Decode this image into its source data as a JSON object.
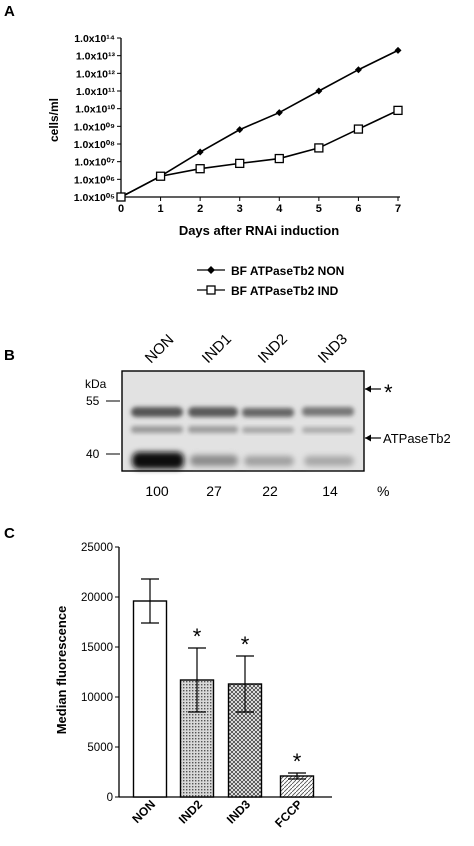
{
  "panels": {
    "a": {
      "label": "A"
    },
    "b": {
      "label": "B"
    },
    "c": {
      "label": "C"
    }
  },
  "chart_data": [
    {
      "panel": "A",
      "type": "line",
      "xlabel": "Days after RNAi induction",
      "ylabel": "cells/ml",
      "xlim": [
        0,
        7
      ],
      "ylim_log10": [
        5,
        14
      ],
      "yscale": "log",
      "x_ticks": [
        "0",
        "1",
        "2",
        "3",
        "4",
        "5",
        "6",
        "7"
      ],
      "y_ticks": [
        "1.0x10⁰⁵",
        "1.0x10⁰⁶",
        "1.0x10⁰⁷",
        "1.0x10⁰⁸",
        "1.0x10⁰⁹",
        "1.0x10¹⁰",
        "1.0x10¹¹",
        "1.0x10¹²",
        "1.0x10¹³",
        "1.0x10¹⁴"
      ],
      "x": [
        0,
        1,
        2,
        3,
        4,
        5,
        6,
        7
      ],
      "series": [
        {
          "name": "BF ATPaseTb2 NON",
          "marker": "filled-diamond",
          "values": [
            100000.0,
            1500000.0,
            35000000.0,
            650000000.0,
            6000000000.0,
            100000000000.0,
            1600000000000.0,
            20000000000000.0
          ]
        },
        {
          "name": "BF ATPaseTb2 IND",
          "marker": "open-square",
          "values": [
            100000.0,
            1500000.0,
            4000000.0,
            8000000.0,
            15000000.0,
            60000000.0,
            700000000.0,
            8000000000.0
          ]
        }
      ],
      "legend_position": "below-chart"
    },
    {
      "panel": "B",
      "type": "table",
      "title": "",
      "unit_label": "kDa",
      "lanes": [
        "NON",
        "IND1",
        "IND2",
        "IND3"
      ],
      "markers": [
        "55",
        "40"
      ],
      "band_labels": [
        "*",
        "ATPaseTb2"
      ],
      "percent_label": "%",
      "values": [
        100,
        27,
        22,
        14
      ]
    },
    {
      "panel": "C",
      "type": "bar",
      "ylabel": "Median fluorescence",
      "categories": [
        "NON",
        "IND2",
        "IND3",
        "FCCP"
      ],
      "values": [
        19600,
        11700,
        11300,
        2100
      ],
      "errors": [
        2200,
        3200,
        2800,
        300
      ],
      "significance": [
        "",
        "*",
        "*",
        "*"
      ],
      "ylim": [
        0,
        25000
      ],
      "y_ticks": [
        "0",
        "5000",
        "10000",
        "15000",
        "20000",
        "25000"
      ],
      "fills": [
        "white",
        "dotted-gray",
        "cross-hatch",
        "diagonal-hatch"
      ]
    }
  ]
}
